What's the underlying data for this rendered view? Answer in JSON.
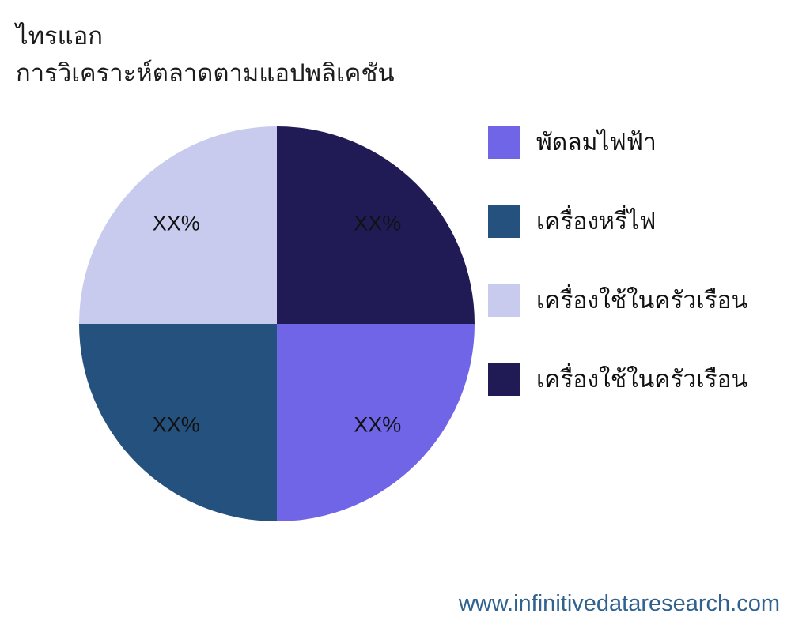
{
  "header": {
    "title_line1": "ไทรแอก",
    "title_line2": "การวิเคราะห์ตลาดตามแอปพลิเคชัน"
  },
  "chart_data": {
    "type": "pie",
    "title": "ไทรแอก",
    "subtitle": "การวิเคราะห์ตลาดตามแอปพลิเคชัน",
    "categories": [
      "พัดลมไฟฟ้า",
      "เครื่องหรี่ไฟ",
      "เครื่องใช้ในครัวเรือน",
      "เครื่องใช้ในครัวเรือน"
    ],
    "values": [
      25,
      25,
      25,
      25
    ],
    "value_labels": [
      "XX%",
      "XX%",
      "XX%",
      "XX%"
    ],
    "colors": [
      "#7064e7",
      "#24517e",
      "#c9cbee",
      "#211b55"
    ],
    "start_angle_deg": 0,
    "direction": "clockwise",
    "legend_position": "right",
    "label_radius_fraction": 0.72,
    "label_color": "#111111"
  },
  "legend": {
    "items": [
      {
        "label": "พัดลมไฟฟ้า",
        "color": "#7064e7"
      },
      {
        "label": "เครื่องหรี่ไฟ",
        "color": "#24517e"
      },
      {
        "label": "เครื่องใช้ในครัวเรือน",
        "color": "#c9cbee"
      },
      {
        "label": "เครื่องใช้ในครัวเรือน",
        "color": "#211b55"
      }
    ]
  },
  "footer": {
    "website": "www.infinitivedataresearch.com",
    "link_color": "#2f628f"
  }
}
